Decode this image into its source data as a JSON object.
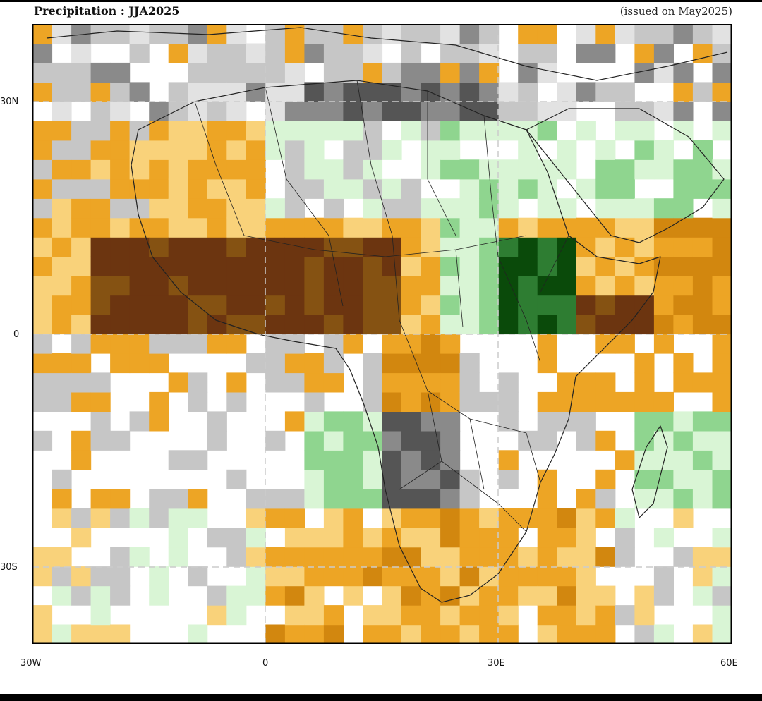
{
  "header": {
    "title": "Precipitation : JJA2025",
    "issued": "(issued on May2025)"
  },
  "axes": {
    "x_ticks": [
      "30W",
      "0",
      "30E",
      "60E"
    ],
    "y_ticks": [
      "30N",
      "0",
      "30S"
    ],
    "lon_range": [
      -30,
      60
    ],
    "lat_range": [
      -40,
      40
    ]
  },
  "map": {
    "projection": "equirectangular",
    "grid_cell_deg": 2.5,
    "gridlines": "dashed",
    "coastlines": true,
    "country_borders": true
  },
  "colors": {
    "above_normal_strong": "#0a4a0a",
    "above_normal_mid": "#2e7d32",
    "above_normal": "#8fd58f",
    "above_normal_light": "#d9f5d5",
    "near_normal_dark": "#555555",
    "near_normal_mid": "#8a8a8a",
    "near_normal_light": "#c6c6c6",
    "near_normal_pale": "#e2e2e2",
    "below_normal_light": "#f9d27a",
    "below_normal": "#eda525",
    "below_normal_mid": "#d2870f",
    "below_normal_dark": "#855212",
    "below_normal_strong": "#6c3510",
    "no_signal": "#ffffff"
  }
}
